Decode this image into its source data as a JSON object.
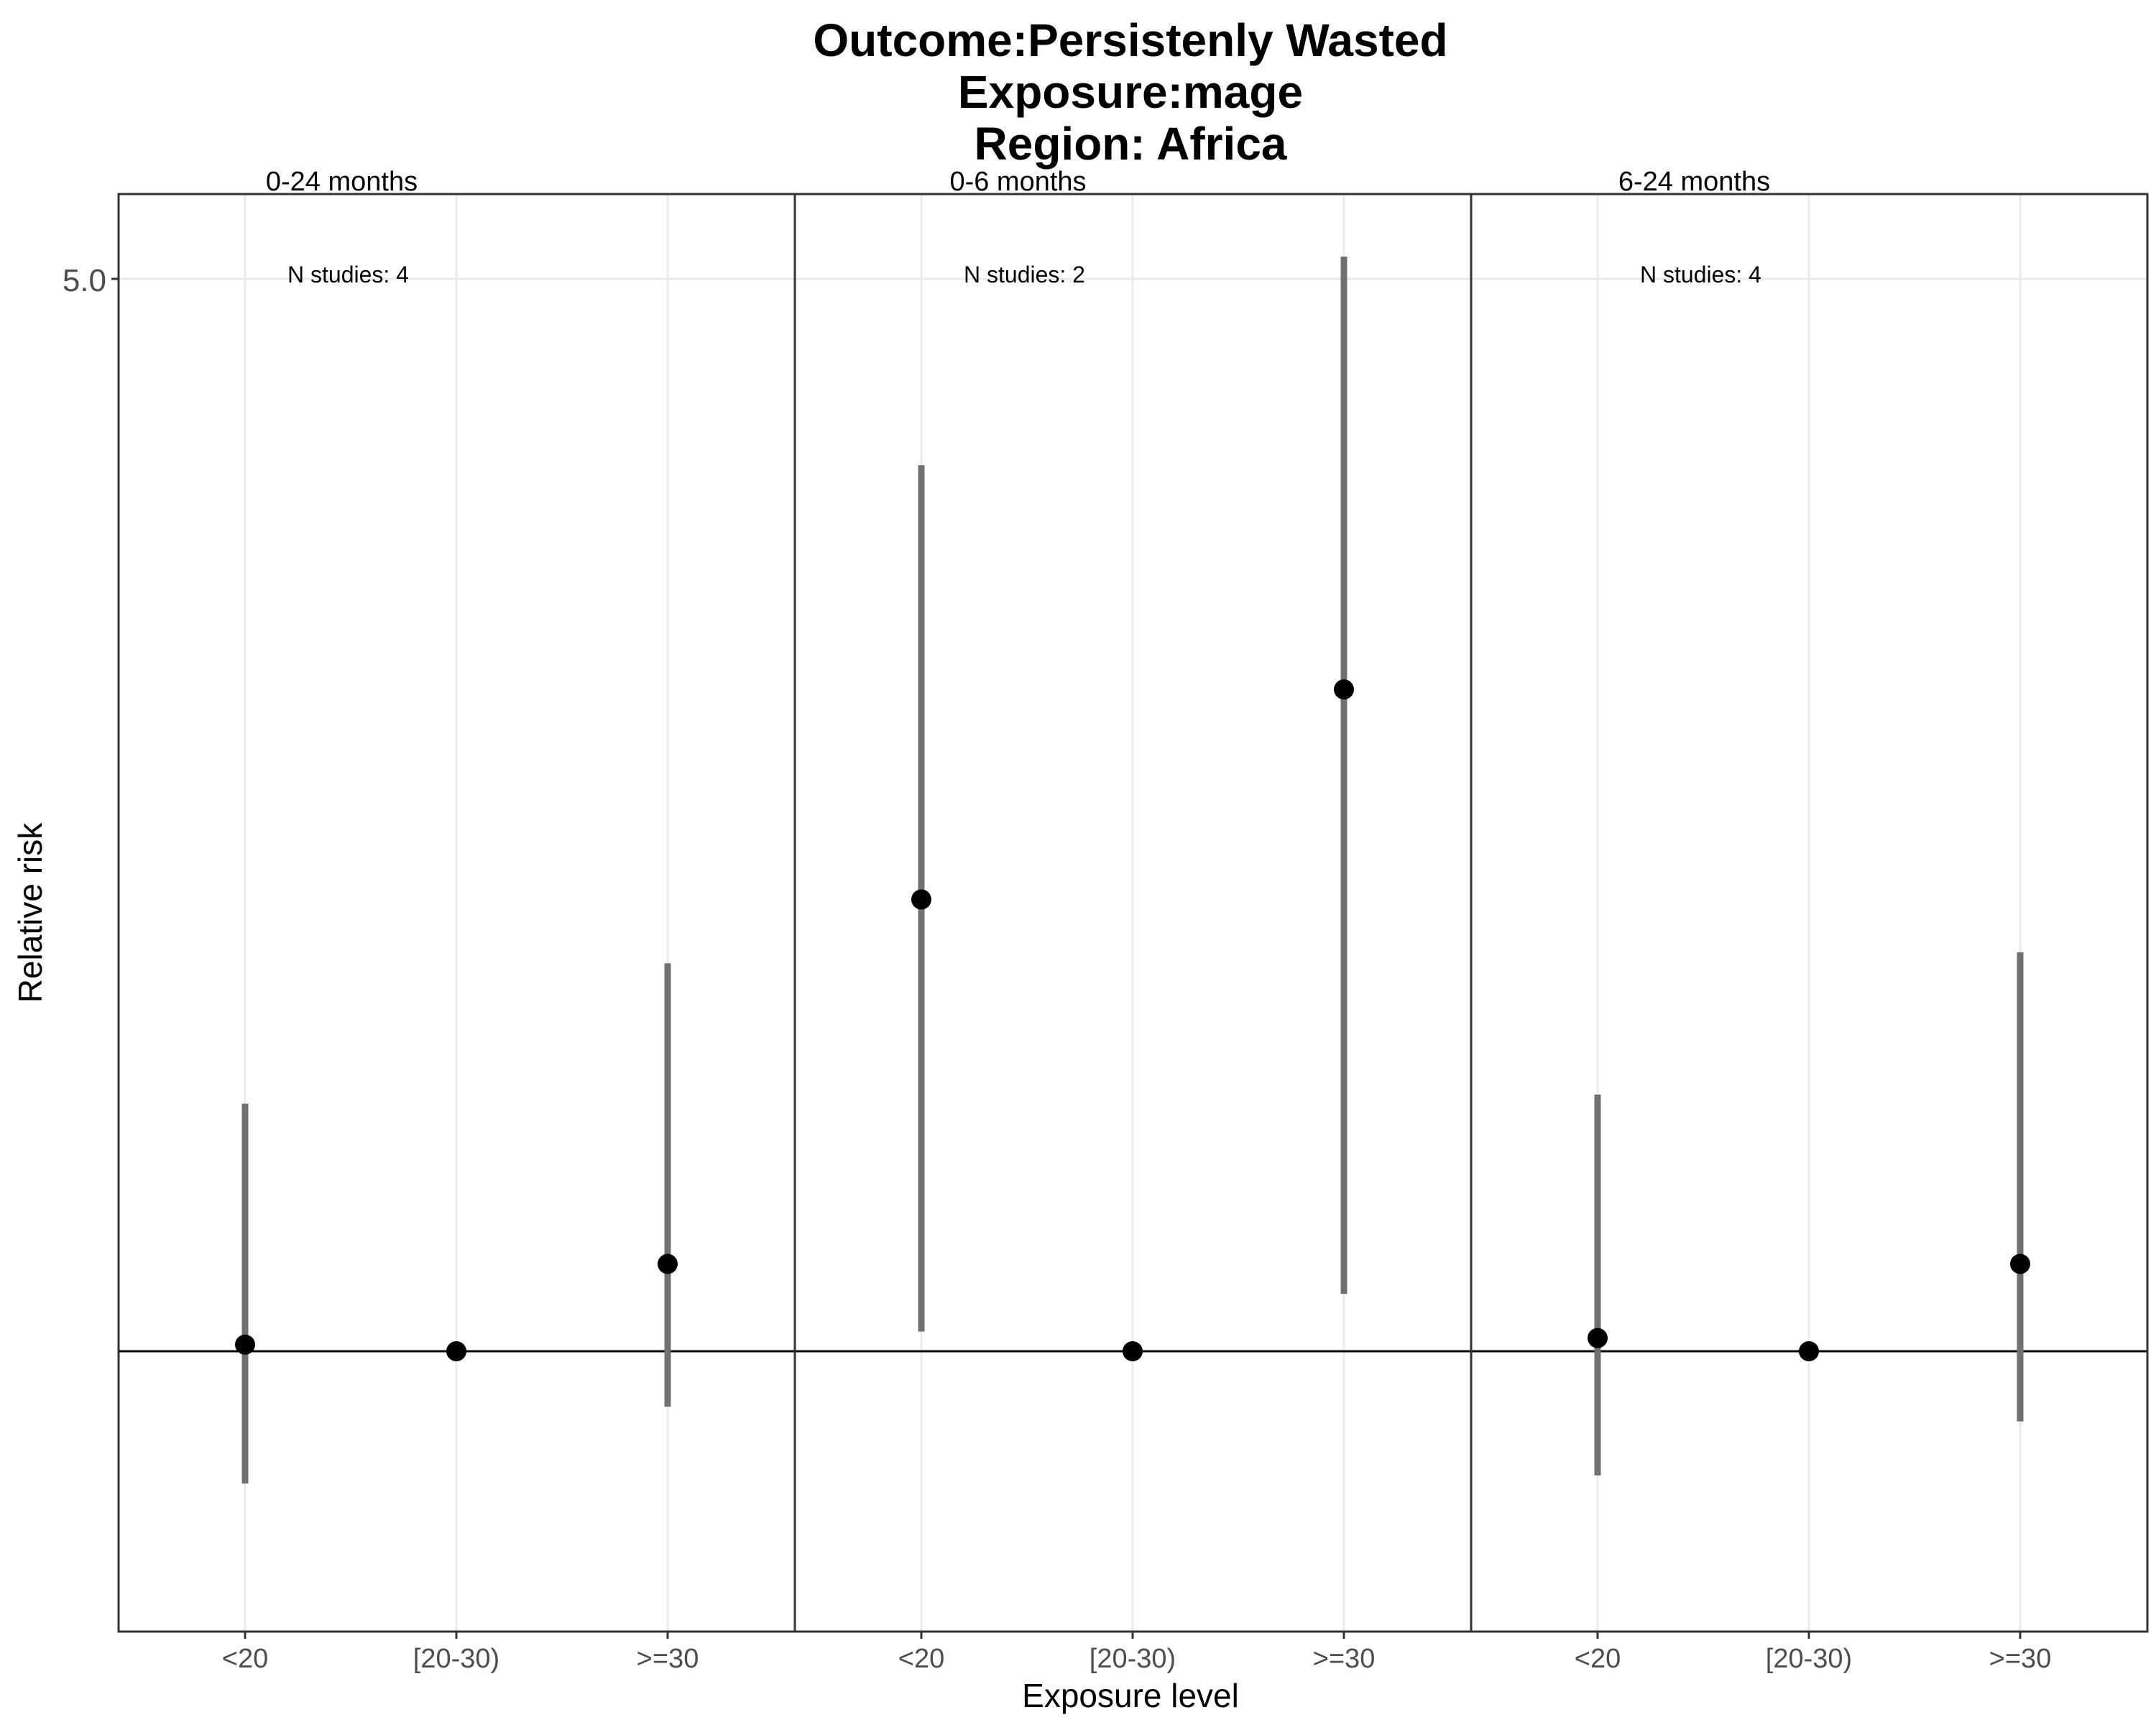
{
  "chart_data": {
    "type": "scatter",
    "title_lines": [
      "Outcome:Persistenly Wasted",
      "Exposure:mage",
      "Region: Africa"
    ],
    "xlabel": "Exposure level",
    "ylabel": "Relative risk",
    "y_scale": "log",
    "y_ticks": [
      {
        "value": 5.0,
        "label": "5.0"
      }
    ],
    "reference_line": 1.0,
    "categories": [
      "<20",
      "[20-30)",
      ">=30"
    ],
    "grid": true,
    "facets": [
      {
        "name": "0-24 months",
        "annotation": "N studies: 4",
        "points": [
          {
            "x": "<20",
            "rr": 1.01,
            "lower": 0.82,
            "upper": 1.45
          },
          {
            "x": "[20-30)",
            "rr": 1.0
          },
          {
            "x": ">=30",
            "rr": 1.14,
            "lower": 0.92,
            "upper": 1.79
          }
        ]
      },
      {
        "name": "0-6 months",
        "annotation": "N studies: 2",
        "points": [
          {
            "x": "<20",
            "rr": 1.97,
            "lower": 1.03,
            "upper": 3.78
          },
          {
            "x": "[20-30)",
            "rr": 1.0
          },
          {
            "x": ">=30",
            "rr": 2.7,
            "lower": 1.09,
            "upper": 5.17
          }
        ]
      },
      {
        "name": "6-24 months",
        "annotation": "N studies: 4",
        "points": [
          {
            "x": "<20",
            "rr": 1.02,
            "lower": 0.83,
            "upper": 1.47
          },
          {
            "x": "[20-30)",
            "rr": 1.0
          },
          {
            "x": ">=30",
            "rr": 1.14,
            "lower": 0.9,
            "upper": 1.82
          }
        ]
      }
    ]
  }
}
